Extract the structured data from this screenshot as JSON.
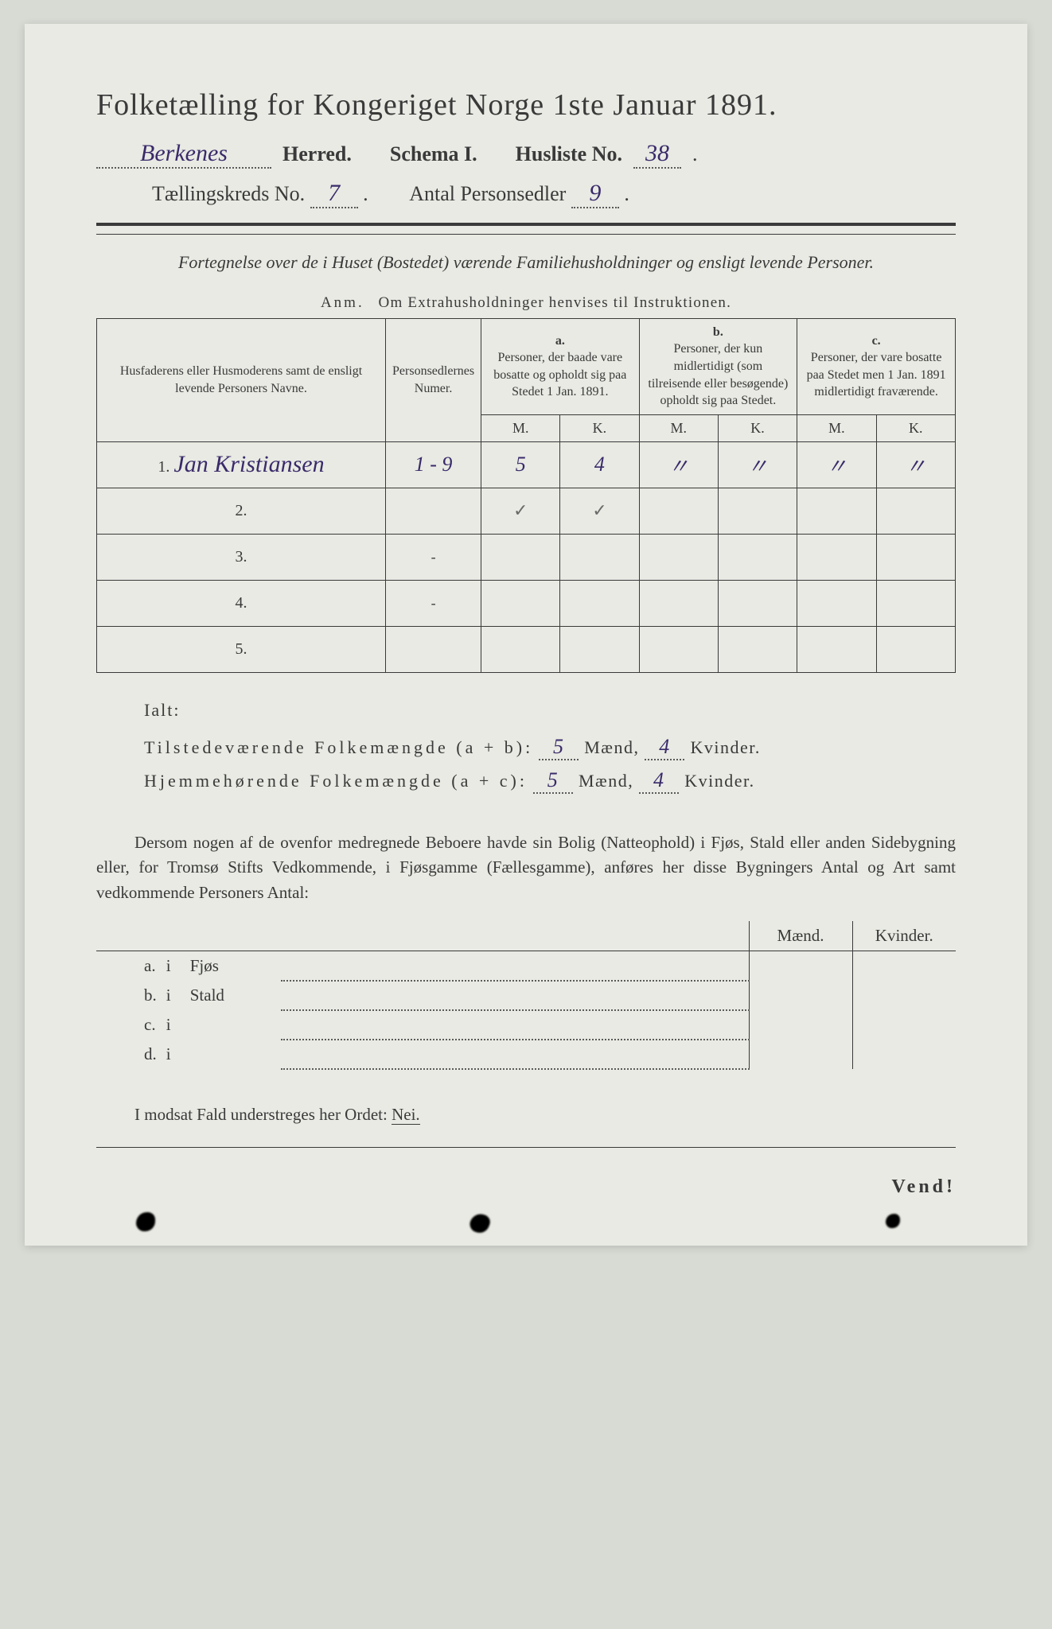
{
  "colors": {
    "page_bg": "#e8eae3",
    "body_bg": "#d8dad4",
    "ink": "#3a3a3a",
    "handwriting": "#3a2a6a",
    "dotted": "#5a5a5a"
  },
  "header": {
    "title": "Folketælling for Kongeriget Norge 1ste Januar 1891.",
    "herred_value": "Berkenes",
    "herred_label": "Herred.",
    "schema_label": "Schema I.",
    "husliste_label": "Husliste No.",
    "husliste_value": "38",
    "kreds_label": "Tællingskreds No.",
    "kreds_value": "7",
    "antal_label": "Antal Personsedler",
    "antal_value": "9"
  },
  "description": "Fortegnelse over de i Huset (Bostedet) værende Familiehusholdninger og ensligt levende Personer.",
  "anm": {
    "prefix": "Anm.",
    "text": "Om Extrahusholdninger henvises til Instruktionen."
  },
  "table": {
    "col_name": "Husfaderens eller Husmoderens samt de ensligt levende Personers Navne.",
    "col_num": "Personsedlernes Numer.",
    "col_a_top": "a.",
    "col_a": "Personer, der baade vare bosatte og opholdt sig paa Stedet 1 Jan. 1891.",
    "col_b_top": "b.",
    "col_b": "Personer, der kun midlertidigt (som tilreisende eller besøgende) opholdt sig paa Stedet.",
    "col_c_top": "c.",
    "col_c": "Personer, der vare bosatte paa Stedet men 1 Jan. 1891 midlertidigt fraværende.",
    "m": "M.",
    "k": "K.",
    "rows": [
      {
        "n": "1.",
        "name": "Jan Kristiansen",
        "num": "1 - 9",
        "am": "5",
        "ak": "4",
        "bm": "·",
        "bk": "·",
        "cm": "·",
        "ck": "·"
      },
      {
        "n": "2.",
        "name": "",
        "num": "",
        "am": "✓",
        "ak": "✓",
        "bm": "",
        "bk": "",
        "cm": "",
        "ck": ""
      },
      {
        "n": "3.",
        "name": "",
        "num": "-",
        "am": "",
        "ak": "",
        "bm": "",
        "bk": "",
        "cm": "",
        "ck": ""
      },
      {
        "n": "4.",
        "name": "",
        "num": "-",
        "am": "",
        "ak": "",
        "bm": "",
        "bk": "",
        "cm": "",
        "ck": ""
      },
      {
        "n": "5.",
        "name": "",
        "num": "",
        "am": "",
        "ak": "",
        "bm": "",
        "bk": "",
        "cm": "",
        "ck": ""
      }
    ]
  },
  "totals": {
    "ialt": "Ialt:",
    "line1_label": "Tilstedeværende Folkemængde (a + b):",
    "line2_label": "Hjemmehørende Folkemængde (a + c):",
    "maend": "Mænd,",
    "kvinder": "Kvinder.",
    "v1_m": "5",
    "v1_k": "4",
    "v2_m": "5",
    "v2_k": "4"
  },
  "para": "Dersom nogen af de ovenfor medregnede Beboere havde sin Bolig (Natteophold) i Fjøs, Stald eller anden Sidebygning eller, for Tromsø Stifts Vedkommende, i Fjøsgamme (Fællesgamme), anføres her disse Bygningers Antal og Art samt vedkommende Personers Antal:",
  "mini": {
    "hd_m": "Mænd.",
    "hd_k": "Kvinder.",
    "rows": [
      {
        "l": "a.",
        "i": "i",
        "kind": "Fjøs"
      },
      {
        "l": "b.",
        "i": "i",
        "kind": "Stald"
      },
      {
        "l": "c.",
        "i": "i",
        "kind": ""
      },
      {
        "l": "d.",
        "i": "i",
        "kind": ""
      }
    ]
  },
  "nei_line": {
    "prefix": "I modsat Fald understreges her Ordet:",
    "word": "Nei."
  },
  "vend": "Vend!"
}
